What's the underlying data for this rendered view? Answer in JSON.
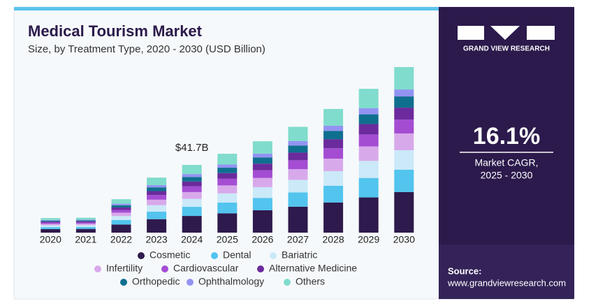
{
  "chart_data": {
    "type": "stacked_bar",
    "title": "Medical Tourism Market",
    "subtitle": "Size, by Treatment Type, 2020 - 2030 (USD Billion)",
    "categories": [
      "2020",
      "2021",
      "2022",
      "2023",
      "2024",
      "2025",
      "2026",
      "2027",
      "2028",
      "2029",
      "2030"
    ],
    "series": [
      {
        "name": "Cosmetic",
        "color": "#2e1a4c",
        "values": [
          2.2,
          2.3,
          5.0,
          8.3,
          10.3,
          11.9,
          13.8,
          16.0,
          18.6,
          21.7,
          25.0
        ]
      },
      {
        "name": "Dental",
        "color": "#52c4ee",
        "values": [
          1.2,
          1.2,
          2.8,
          4.6,
          5.6,
          6.6,
          7.6,
          8.8,
          10.3,
          12.0,
          13.8
        ]
      },
      {
        "name": "Bariatric",
        "color": "#cbe9f8",
        "values": [
          1.1,
          1.1,
          2.4,
          4.0,
          4.9,
          5.7,
          6.6,
          7.7,
          9.0,
          10.5,
          12.0
        ]
      },
      {
        "name": "Infertility",
        "color": "#d8a9ea",
        "values": [
          0.9,
          0.9,
          2.1,
          3.4,
          4.2,
          4.9,
          5.7,
          6.6,
          7.7,
          8.9,
          10.3
        ]
      },
      {
        "name": "Cardiovascular",
        "color": "#a44dd3",
        "values": [
          0.8,
          0.8,
          1.7,
          2.9,
          3.5,
          4.1,
          4.7,
          5.5,
          6.4,
          7.4,
          8.6
        ]
      },
      {
        "name": "Alternative Medicine",
        "color": "#6b2b9c",
        "values": [
          0.6,
          0.7,
          1.5,
          2.4,
          3.0,
          3.5,
          4.1,
          4.7,
          5.5,
          6.4,
          7.3
        ]
      },
      {
        "name": "Orthopedic",
        "color": "#0f6f8f",
        "values": [
          0.6,
          0.6,
          1.4,
          2.3,
          2.8,
          3.3,
          3.8,
          4.4,
          5.2,
          6.0,
          6.9
        ]
      },
      {
        "name": "Ophthalmology",
        "color": "#9393f2",
        "values": [
          0.4,
          0.4,
          0.9,
          1.4,
          1.8,
          2.0,
          2.4,
          2.7,
          3.2,
          3.7,
          4.3
        ]
      },
      {
        "name": "Others",
        "color": "#80dccd",
        "values": [
          1.2,
          1.2,
          2.8,
          4.6,
          5.6,
          6.6,
          7.6,
          8.8,
          10.3,
          12.0,
          13.8
        ]
      }
    ],
    "annotations": [
      {
        "x": "2024",
        "text": "$41.7B"
      }
    ]
  },
  "sidebar": {
    "brand": "GRAND VIEW RESEARCH",
    "cagr": "16.1%",
    "cagr_label": [
      "Market CAGR,",
      "2025 - 2030"
    ],
    "source_label": "Source:",
    "source_url": "www.grandviewresearch.com"
  }
}
